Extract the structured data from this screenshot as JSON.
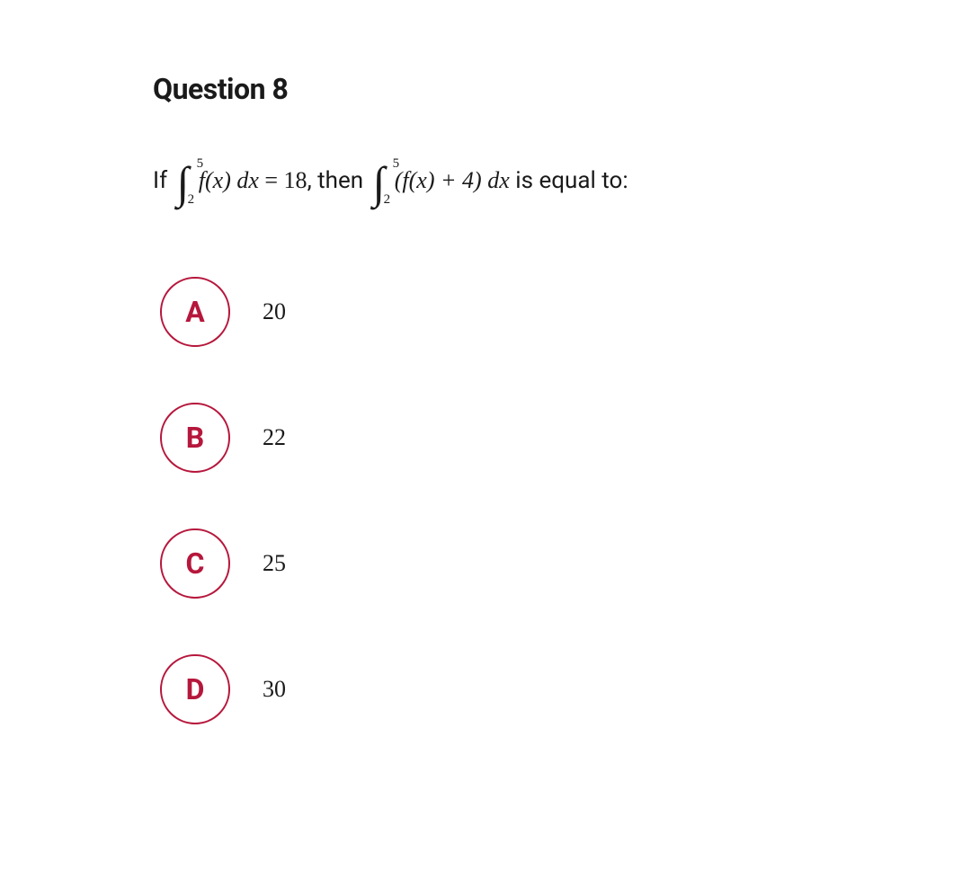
{
  "question": {
    "title": "Question 8",
    "prefix": "If ",
    "integral1_upper": "5",
    "integral1_lower": "2",
    "integrand1": "f(x) dx",
    "equals_value": "= 18",
    "middle_text": ", then ",
    "integral2_upper": "5",
    "integral2_lower": "2",
    "integrand2": "(f(x) + 4) dx",
    "suffix": " is equal to:"
  },
  "choices": [
    {
      "letter": "A",
      "value": "20"
    },
    {
      "letter": "B",
      "value": "22"
    },
    {
      "letter": "C",
      "value": "25"
    },
    {
      "letter": "D",
      "value": "30"
    }
  ],
  "styling": {
    "accent_color": "#b6173c",
    "background_color": "#ffffff",
    "text_color": "#1a1a1a",
    "title_fontsize": 32,
    "body_fontsize": 26,
    "choice_letter_fontsize": 32,
    "choice_value_fontsize": 26,
    "circle_diameter": 78,
    "circle_border_width": 2,
    "choice_gap": 62
  }
}
